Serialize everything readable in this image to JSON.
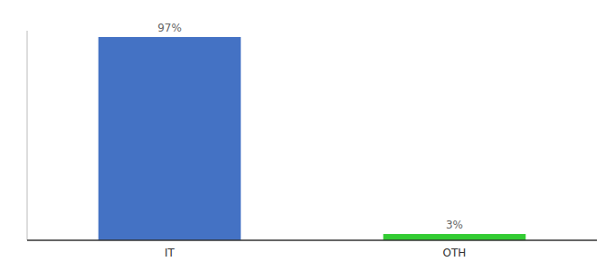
{
  "chart_data": {
    "type": "bar",
    "categories": [
      "IT",
      "OTH"
    ],
    "values": [
      97,
      3
    ],
    "value_labels": [
      "97%",
      "3%"
    ],
    "colors": [
      "#4472c4",
      "#33cc33"
    ],
    "ylim": [
      0,
      100
    ],
    "data_labels": true,
    "tick_labels": "x",
    "grid": false
  }
}
